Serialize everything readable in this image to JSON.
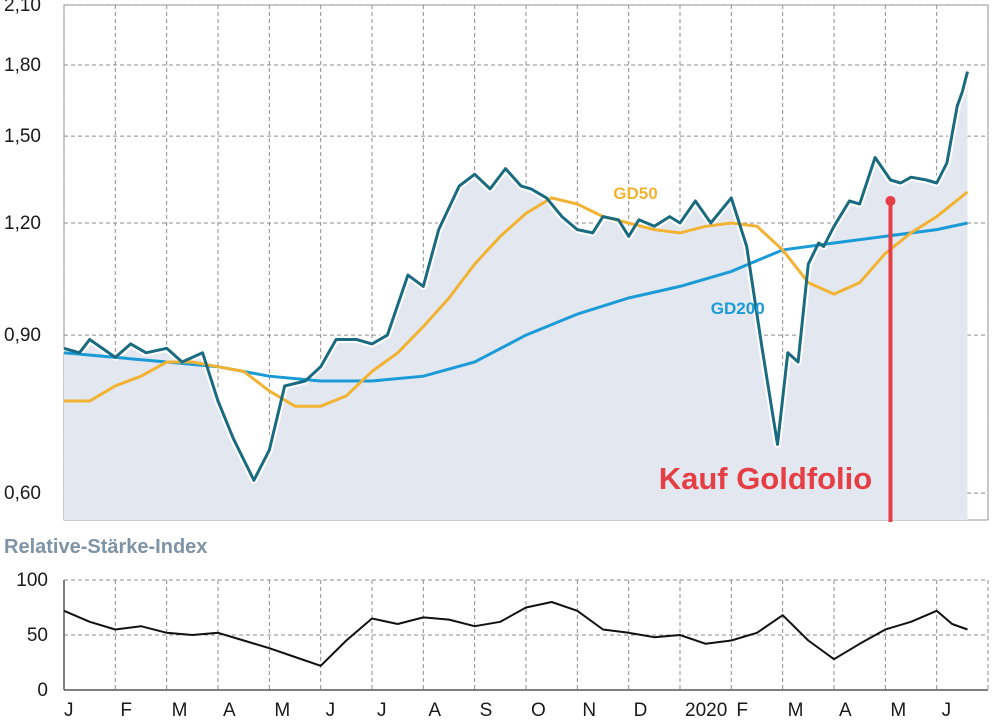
{
  "chart_data": [
    {
      "type": "line",
      "y_scale": "log",
      "ylim": [
        0.56,
        2.1
      ],
      "yticks": [
        "2,10",
        "1,80",
        "1,50",
        "1,20",
        "0,90",
        "0,60"
      ],
      "ytick_values": [
        2.1,
        1.8,
        1.5,
        1.2,
        0.9,
        0.6
      ],
      "x_months": [
        "J",
        "F",
        "M",
        "A",
        "M",
        "J",
        "J",
        "A",
        "S",
        "O",
        "N",
        "D",
        "2020",
        "F",
        "M",
        "A",
        "M",
        "J"
      ],
      "grid": true,
      "colors": {
        "price": "#1b6b80",
        "gd50": "#f2b233",
        "gd200": "#1a9ad6",
        "area": "#e3e8f0",
        "annotation": "#e53e45"
      },
      "series": [
        {
          "key": "price",
          "x": [
            0,
            0.3,
            0.5,
            1.0,
            1.3,
            1.6,
            2.0,
            2.3,
            2.7,
            3.0,
            3.3,
            3.7,
            4.0,
            4.3,
            4.7,
            5.0,
            5.3,
            5.7,
            6.0,
            6.3,
            6.7,
            7.0,
            7.3,
            7.7,
            8.0,
            8.3,
            8.6,
            8.9,
            9.1,
            9.4,
            9.7,
            10.0,
            10.3,
            10.5,
            10.8,
            11.0,
            11.2,
            11.5,
            11.8,
            12.0,
            12.3,
            12.6,
            13.0,
            13.3,
            13.6,
            13.9,
            14.1,
            14.3,
            14.5,
            14.7,
            14.8,
            15.0,
            15.3,
            15.5,
            15.8,
            16.1,
            16.3,
            16.5,
            16.8,
            17.0,
            17.2,
            17.4,
            17.5,
            17.6
          ],
          "y": [
            0.87,
            0.86,
            0.89,
            0.85,
            0.88,
            0.86,
            0.87,
            0.84,
            0.86,
            0.76,
            0.69,
            0.62,
            0.67,
            0.79,
            0.8,
            0.83,
            0.89,
            0.89,
            0.88,
            0.9,
            1.05,
            1.02,
            1.18,
            1.32,
            1.36,
            1.31,
            1.38,
            1.32,
            1.31,
            1.28,
            1.22,
            1.18,
            1.17,
            1.22,
            1.21,
            1.16,
            1.21,
            1.19,
            1.22,
            1.2,
            1.27,
            1.2,
            1.28,
            1.13,
            0.87,
            0.68,
            0.86,
            0.84,
            1.08,
            1.14,
            1.13,
            1.19,
            1.27,
            1.26,
            1.42,
            1.34,
            1.33,
            1.35,
            1.34,
            1.33,
            1.4,
            1.62,
            1.68,
            1.77
          ]
        },
        {
          "key": "gd50",
          "name": "GD50",
          "x": [
            0,
            0.5,
            1.0,
            1.5,
            2.0,
            2.5,
            3.0,
            3.5,
            4.0,
            4.5,
            5.0,
            5.5,
            6.0,
            6.5,
            7.0,
            7.5,
            8.0,
            8.5,
            9.0,
            9.5,
            10.0,
            10.5,
            11.0,
            11.5,
            12.0,
            12.5,
            13.0,
            13.5,
            14.0,
            14.5,
            15.0,
            15.5,
            16.0,
            16.5,
            17.0,
            17.6
          ],
          "y": [
            0.76,
            0.76,
            0.79,
            0.81,
            0.84,
            0.84,
            0.83,
            0.82,
            0.78,
            0.75,
            0.75,
            0.77,
            0.82,
            0.86,
            0.92,
            0.99,
            1.08,
            1.16,
            1.23,
            1.28,
            1.26,
            1.22,
            1.2,
            1.18,
            1.17,
            1.19,
            1.2,
            1.19,
            1.12,
            1.03,
            1.0,
            1.03,
            1.11,
            1.17,
            1.22,
            1.3
          ]
        },
        {
          "key": "gd200",
          "name": "GD200",
          "x": [
            0,
            1,
            2,
            3,
            4,
            5,
            6,
            7,
            8,
            9,
            10,
            11,
            12,
            13,
            14,
            15,
            16,
            17,
            17.6
          ],
          "y": [
            0.86,
            0.85,
            0.84,
            0.83,
            0.81,
            0.8,
            0.8,
            0.81,
            0.84,
            0.9,
            0.95,
            0.99,
            1.02,
            1.06,
            1.12,
            1.14,
            1.16,
            1.18,
            1.2
          ]
        }
      ],
      "annotation": {
        "text": "Kauf Goldfolio",
        "x": 16.1,
        "y": 1.27
      }
    },
    {
      "type": "line",
      "title": "Relative-Stärke-Index",
      "ylim": [
        0,
        100
      ],
      "yticks": [
        "100",
        "50",
        "0"
      ],
      "ytick_values": [
        100,
        50,
        0
      ],
      "x_months": [
        "J",
        "F",
        "M",
        "A",
        "M",
        "J",
        "J",
        "A",
        "S",
        "O",
        "N",
        "D",
        "2020",
        "F",
        "M",
        "A",
        "M",
        "J"
      ],
      "grid": true,
      "series": [
        {
          "key": "rsi",
          "x": [
            0,
            0.5,
            1.0,
            1.5,
            2.0,
            2.5,
            3.0,
            3.5,
            4.0,
            4.5,
            5.0,
            5.5,
            6.0,
            6.5,
            7.0,
            7.5,
            8.0,
            8.5,
            9.0,
            9.5,
            10.0,
            10.5,
            11.0,
            11.5,
            12.0,
            12.5,
            13.0,
            13.5,
            14.0,
            14.5,
            15.0,
            15.5,
            16.0,
            16.5,
            17.0,
            17.3,
            17.6
          ],
          "y": [
            72,
            62,
            55,
            58,
            52,
            50,
            52,
            45,
            38,
            30,
            22,
            45,
            65,
            60,
            66,
            64,
            58,
            62,
            75,
            80,
            72,
            55,
            52,
            48,
            50,
            42,
            45,
            52,
            68,
            45,
            28,
            42,
            55,
            62,
            72,
            60,
            55
          ]
        }
      ]
    }
  ]
}
